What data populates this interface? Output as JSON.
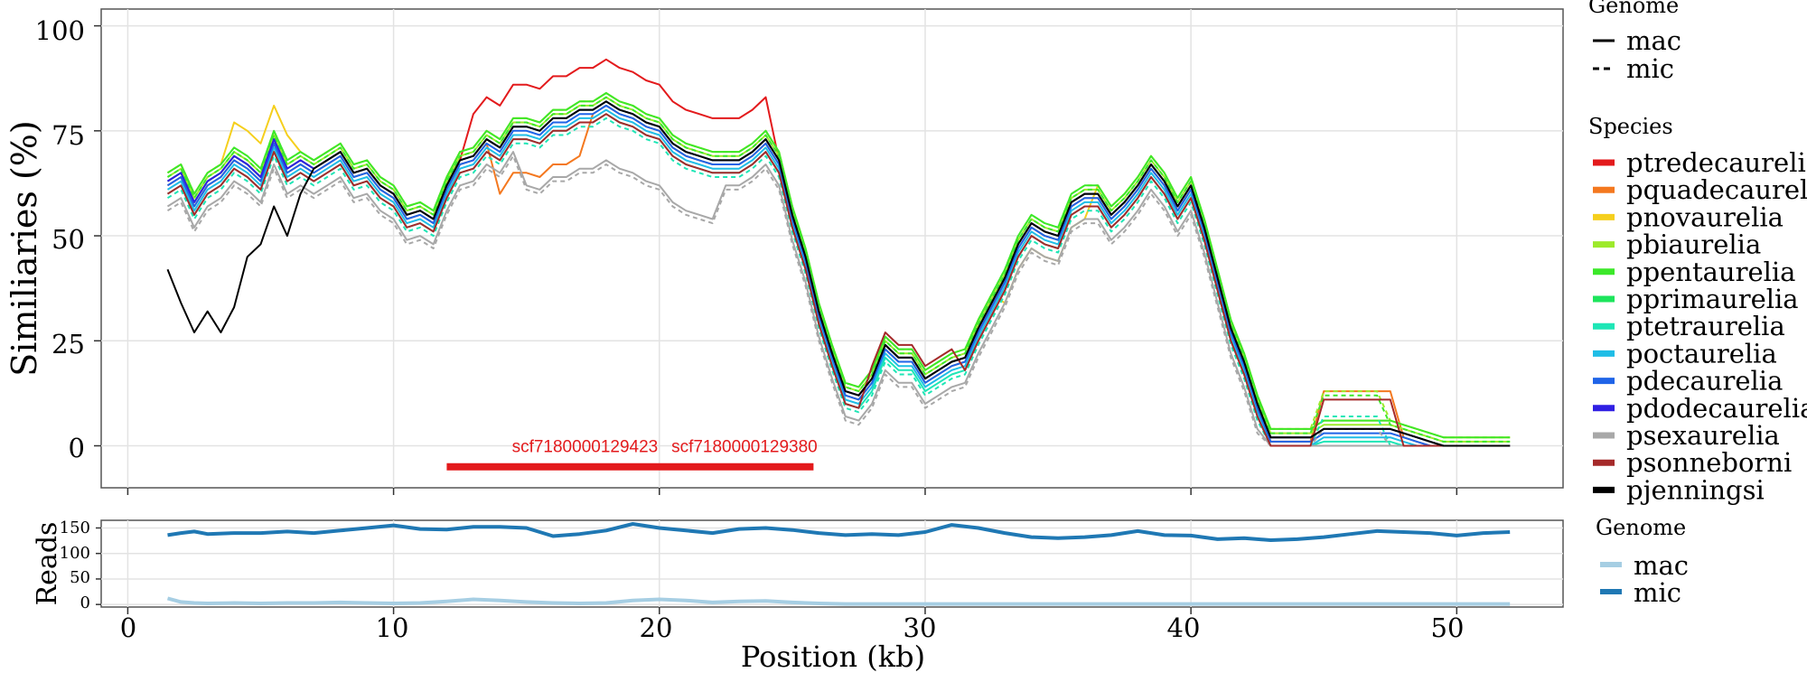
{
  "chart_data": [
    {
      "type": "line",
      "ylabel": "Similiaries (%)",
      "xlim": [
        -1,
        54
      ],
      "ylim": [
        -10,
        104
      ],
      "x_ticks": [
        0,
        10,
        20,
        30,
        40,
        50
      ],
      "y_ticks": [
        0,
        25,
        50,
        75,
        100
      ],
      "y_tick_labels": [
        "0",
        "25",
        "50",
        "75",
        "100"
      ],
      "grid": true,
      "legend_position": "right",
      "legend_genome": {
        "title": "Genome",
        "items": [
          {
            "label": "mac",
            "style": "solid"
          },
          {
            "label": "mic",
            "style": "dashed"
          }
        ]
      },
      "legend_species": {
        "title": "Species",
        "items": [
          {
            "label": "ptredecaurelia",
            "color": "#e31a1c"
          },
          {
            "label": "pquadecaurelia",
            "color": "#f4781f"
          },
          {
            "label": "pnovaurelia",
            "color": "#f5cf1d"
          },
          {
            "label": "pbiaurelia",
            "color": "#9dea2c"
          },
          {
            "label": "ppentaurelia",
            "color": "#3ce82a"
          },
          {
            "label": "pprimaurelia",
            "color": "#1de55c"
          },
          {
            "label": "ptetraurelia",
            "color": "#1ee6b6"
          },
          {
            "label": "poctaurelia",
            "color": "#1fbde6"
          },
          {
            "label": "pdecaurelia",
            "color": "#1f64e8"
          },
          {
            "label": "pdodecaurelia",
            "color": "#2f1fe3"
          },
          {
            "label": "psexaurelia",
            "color": "#a8a8a8"
          },
          {
            "label": "psonneborni",
            "color": "#a52a2a"
          },
          {
            "label": "pjenningsi",
            "color": "#000000"
          }
        ]
      },
      "annotations": [
        {
          "text": "scf7180000129423",
          "x": 17.2,
          "y": 0,
          "color": "#e31a1c"
        },
        {
          "text": "scf7180000129380",
          "x": 23.2,
          "y": 0,
          "color": "#e31a1c"
        }
      ],
      "gene_track": {
        "x_start": 12,
        "x_end": 25.8,
        "y": -5,
        "color": "#e31a1c"
      },
      "x": [
        1.5,
        2,
        2.5,
        3,
        3.5,
        4,
        4.5,
        5,
        5.5,
        6,
        6.5,
        7,
        7.5,
        8,
        8.5,
        9,
        9.5,
        10,
        10.5,
        11,
        11.5,
        12,
        12.5,
        13,
        13.5,
        14,
        14.5,
        15,
        15.5,
        16,
        16.5,
        17,
        17.5,
        18,
        18.5,
        19,
        19.5,
        20,
        20.5,
        21,
        21.5,
        22,
        22.5,
        23,
        23.5,
        24,
        24.5,
        25,
        25.5,
        26,
        26.5,
        27,
        27.5,
        28,
        28.5,
        29,
        29.5,
        30,
        30.5,
        31,
        31.5,
        32,
        32.5,
        33,
        33.5,
        34,
        34.5,
        35,
        35.5,
        36,
        36.5,
        37,
        37.5,
        38,
        38.5,
        39,
        39.5,
        40,
        40.5,
        41,
        41.5,
        42,
        42.5,
        43,
        43.5,
        44,
        44.5,
        45,
        45.5,
        46,
        46.5,
        47,
        47.5,
        48,
        48.5,
        49,
        49.5,
        50,
        50.5,
        51,
        51.5,
        52
      ],
      "base_profile": [
        63,
        65,
        58,
        63,
        65,
        69,
        67,
        64,
        73,
        66,
        68,
        66,
        68,
        70,
        65,
        66,
        62,
        60,
        55,
        56,
        54,
        62,
        68,
        69,
        73,
        71,
        76,
        76,
        75,
        78,
        78,
        80,
        80,
        82,
        80,
        79,
        77,
        76,
        72,
        70,
        69,
        68,
        68,
        68,
        70,
        73,
        68,
        55,
        45,
        32,
        22,
        13,
        12,
        16,
        24,
        21,
        21,
        16,
        18,
        20,
        21,
        28,
        34,
        40,
        48,
        53,
        51,
        50,
        58,
        60,
        60,
        55,
        58,
        62,
        67,
        63,
        57,
        62,
        52,
        40,
        28,
        20,
        10,
        2,
        2,
        2,
        2,
        4,
        4,
        4,
        4,
        4,
        4,
        3,
        2,
        1,
        0,
        0,
        0,
        0,
        0,
        0,
        0
      ],
      "series": [
        {
          "name": "ptredecaurelia",
          "genome": "mac",
          "color": "#e31a1c",
          "offset": 0,
          "bump": 1
        },
        {
          "name": "pquadecaurelia",
          "genome": "mac",
          "color": "#f4781f",
          "offset": -1,
          "bump": 0
        },
        {
          "name": "pnovaurelia",
          "genome": "mac",
          "color": "#f5cf1d",
          "offset": 2,
          "bump": 0
        },
        {
          "name": "pbiaurelia",
          "genome": "mac",
          "color": "#9dea2c",
          "offset": 1,
          "bump": 0
        },
        {
          "name": "pbiaurelia",
          "genome": "mic",
          "color": "#9dea2c",
          "offset": 2,
          "bump": 0
        },
        {
          "name": "ppentaurelia",
          "genome": "mac",
          "color": "#3ce82a",
          "offset": 2,
          "bump": 0
        },
        {
          "name": "ppentaurelia",
          "genome": "mic",
          "color": "#3ce82a",
          "offset": 1,
          "bump": 0
        },
        {
          "name": "pprimaurelia",
          "genome": "mac",
          "color": "#1de55c",
          "offset": 0,
          "bump": 0
        },
        {
          "name": "ptetraurelia",
          "genome": "mac",
          "color": "#1ee6b6",
          "offset": -3,
          "bump": 0
        },
        {
          "name": "ptetraurelia",
          "genome": "mic",
          "color": "#1ee6b6",
          "offset": -4,
          "bump": 0
        },
        {
          "name": "poctaurelia",
          "genome": "mac",
          "color": "#1fbde6",
          "offset": -2,
          "bump": 0
        },
        {
          "name": "pdecaurelia",
          "genome": "mac",
          "color": "#1f64e8",
          "offset": -1,
          "bump": 0
        },
        {
          "name": "pdodecaurelia",
          "genome": "mac",
          "color": "#2f1fe3",
          "offset": 0,
          "bump": 0
        },
        {
          "name": "psexaurelia",
          "genome": "mac",
          "color": "#a8a8a8",
          "offset": -6,
          "bump": 0
        },
        {
          "name": "psexaurelia",
          "genome": "mic",
          "color": "#a8a8a8",
          "offset": -7,
          "bump": 0
        },
        {
          "name": "psonneborni",
          "genome": "mac",
          "color": "#a52a2a",
          "offset": -3,
          "bump": 0
        },
        {
          "name": "pjenningsi",
          "genome": "mac",
          "color": "#000000",
          "offset": 0,
          "bump": 0
        }
      ]
    },
    {
      "type": "line",
      "ylabel": "Reads",
      "xlabel": "Position (kb)",
      "xlim": [
        -1,
        54
      ],
      "ylim": [
        -5,
        165
      ],
      "x_ticks": [
        0,
        10,
        20,
        30,
        40,
        50
      ],
      "x_tick_labels": [
        "0",
        "10",
        "20",
        "30",
        "40",
        "50"
      ],
      "y_ticks": [
        0,
        50,
        100,
        150
      ],
      "y_tick_labels": [
        "0",
        "50",
        "100",
        "150"
      ],
      "grid": true,
      "legend": {
        "title": "Genome",
        "items": [
          {
            "label": "mac",
            "color": "#a6cee3"
          },
          {
            "label": "mic",
            "color": "#1f78b4"
          }
        ]
      },
      "series": [
        {
          "name": "mic",
          "color": "#1f78b4",
          "x": [
            1.5,
            2,
            2.5,
            3,
            4,
            5,
            6,
            7,
            8,
            9,
            10,
            11,
            12,
            13,
            14,
            15,
            16,
            17,
            18,
            19,
            20,
            21,
            22,
            23,
            24,
            25,
            26,
            27,
            28,
            29,
            30,
            31,
            32,
            33,
            34,
            35,
            36,
            37,
            38,
            39,
            40,
            41,
            42,
            43,
            44,
            45,
            46,
            47,
            48,
            49,
            50,
            51,
            52
          ],
          "values": [
            136,
            140,
            143,
            138,
            140,
            140,
            143,
            140,
            145,
            150,
            155,
            148,
            147,
            152,
            152,
            150,
            134,
            138,
            145,
            158,
            150,
            145,
            140,
            148,
            150,
            146,
            140,
            136,
            138,
            136,
            142,
            156,
            150,
            140,
            132,
            130,
            132,
            136,
            144,
            136,
            135,
            128,
            130,
            126,
            128,
            132,
            138,
            144,
            142,
            140,
            135,
            140,
            142
          ]
        },
        {
          "name": "mac",
          "color": "#a6cee3",
          "x": [
            1.5,
            2,
            2.5,
            3,
            4,
            5,
            6,
            7,
            8,
            9,
            10,
            11,
            12,
            13,
            14,
            15,
            16,
            17,
            18,
            19,
            20,
            21,
            22,
            23,
            24,
            25,
            26,
            27,
            28,
            29,
            30,
            31,
            32,
            33,
            34,
            35,
            36,
            37,
            38,
            39,
            40,
            41,
            42,
            43,
            44,
            45,
            46,
            47,
            48,
            49,
            50,
            51,
            52
          ],
          "values": [
            12,
            5,
            3,
            2,
            3,
            2,
            3,
            3,
            4,
            3,
            2,
            3,
            6,
            10,
            8,
            5,
            3,
            2,
            3,
            8,
            10,
            8,
            4,
            6,
            7,
            4,
            2,
            1,
            1,
            1,
            1,
            1,
            1,
            1,
            1,
            1,
            1,
            1,
            1,
            1,
            1,
            1,
            1,
            1,
            1,
            1,
            1,
            1,
            1,
            1,
            1,
            1,
            1
          ]
        }
      ]
    }
  ]
}
